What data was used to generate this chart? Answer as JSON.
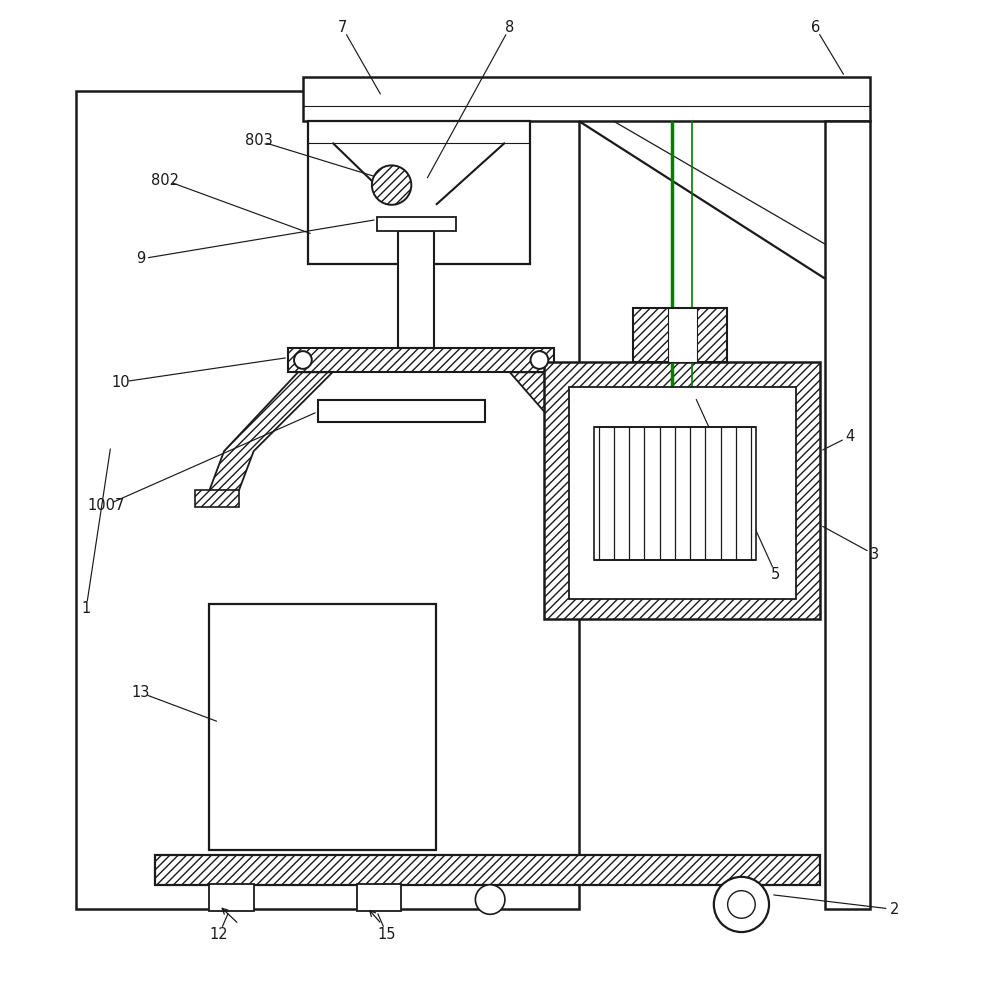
{
  "bg_color": "#ffffff",
  "line_color": "#1a1a1a",
  "green_color": "#008000",
  "fig_width": 10.0,
  "fig_height": 9.91,
  "dpi": 100
}
